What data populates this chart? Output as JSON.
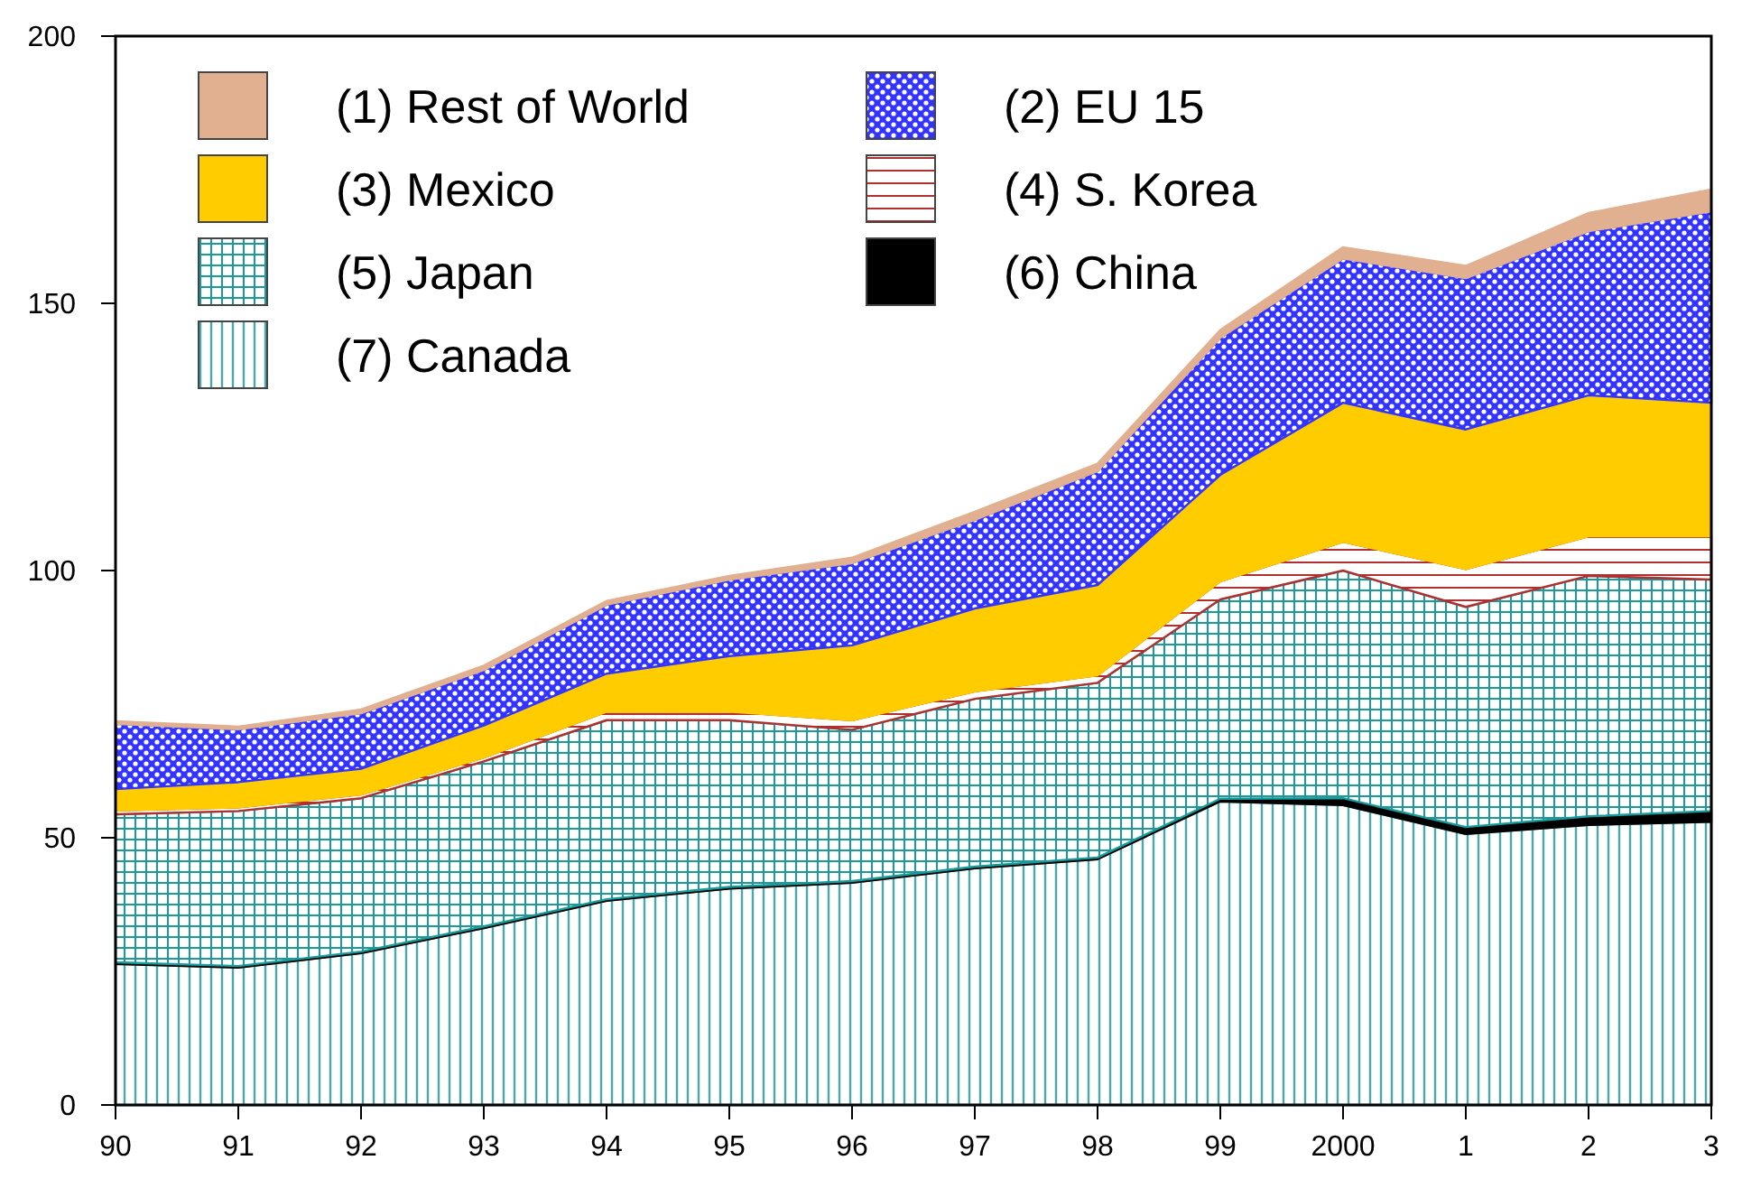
{
  "chart_data": {
    "type": "area",
    "stacked": true,
    "categories": [
      "90",
      "91",
      "92",
      "93",
      "94",
      "95",
      "96",
      "97",
      "98",
      "99",
      "2000",
      "1",
      "2",
      "3"
    ],
    "ylim": [
      0,
      200
    ],
    "yticks": [
      0,
      50,
      100,
      150,
      200
    ],
    "legend": "top left",
    "series": [
      {
        "name": "(7) Canada",
        "color": "#4aa8a8",
        "values": [
          26.4,
          25.7,
          28.4,
          33.1,
          38.2,
          40.5,
          41.6,
          44.3,
          46,
          56.8,
          56.1,
          50.7,
          52.4,
          53
        ]
      },
      {
        "name": "(6) China",
        "color": "#000000",
        "values": [
          0.3,
          0.3,
          0.3,
          0.3,
          0.3,
          0.3,
          0.3,
          0.3,
          0.3,
          0.5,
          1.3,
          1.3,
          1.6,
          2
        ]
      },
      {
        "name": "(5) Japan",
        "color": "#1a9a9a",
        "values": [
          27.7,
          29,
          28.7,
          30.9,
          33.5,
          31.2,
          28.3,
          31.4,
          32.7,
          37.3,
          42.6,
          41.2,
          45,
          43.3
        ]
      },
      {
        "name": "(4) S. Korea",
        "color": "#b03030",
        "values": [
          0.7,
          0.7,
          0.7,
          0.7,
          1.6,
          1.6,
          1.8,
          1.4,
          1.4,
          3.4,
          5.4,
          7.1,
          7.4,
          8.1
        ]
      },
      {
        "name": "(3) Mexico",
        "color": "#ffcc00",
        "values": [
          4,
          4.7,
          4.8,
          6,
          7.1,
          10.4,
          14,
          15.5,
          16.9,
          19.9,
          26,
          26.1,
          26.4,
          25
        ]
      },
      {
        "name": "(2) EU 15",
        "color": "#3333ff",
        "values": [
          12.2,
          9.9,
          10.4,
          10.4,
          12.9,
          14.3,
          15.4,
          16.6,
          21.3,
          25.7,
          27,
          28.3,
          30.7,
          35.8
        ]
      },
      {
        "name": "(1) Rest of World",
        "color": "#e0b090",
        "values": [
          0.5,
          0.5,
          0.7,
          0.8,
          0.7,
          0.7,
          1,
          1.5,
          1.4,
          1.4,
          2.1,
          2.3,
          3.4,
          4.1
        ]
      }
    ]
  }
}
